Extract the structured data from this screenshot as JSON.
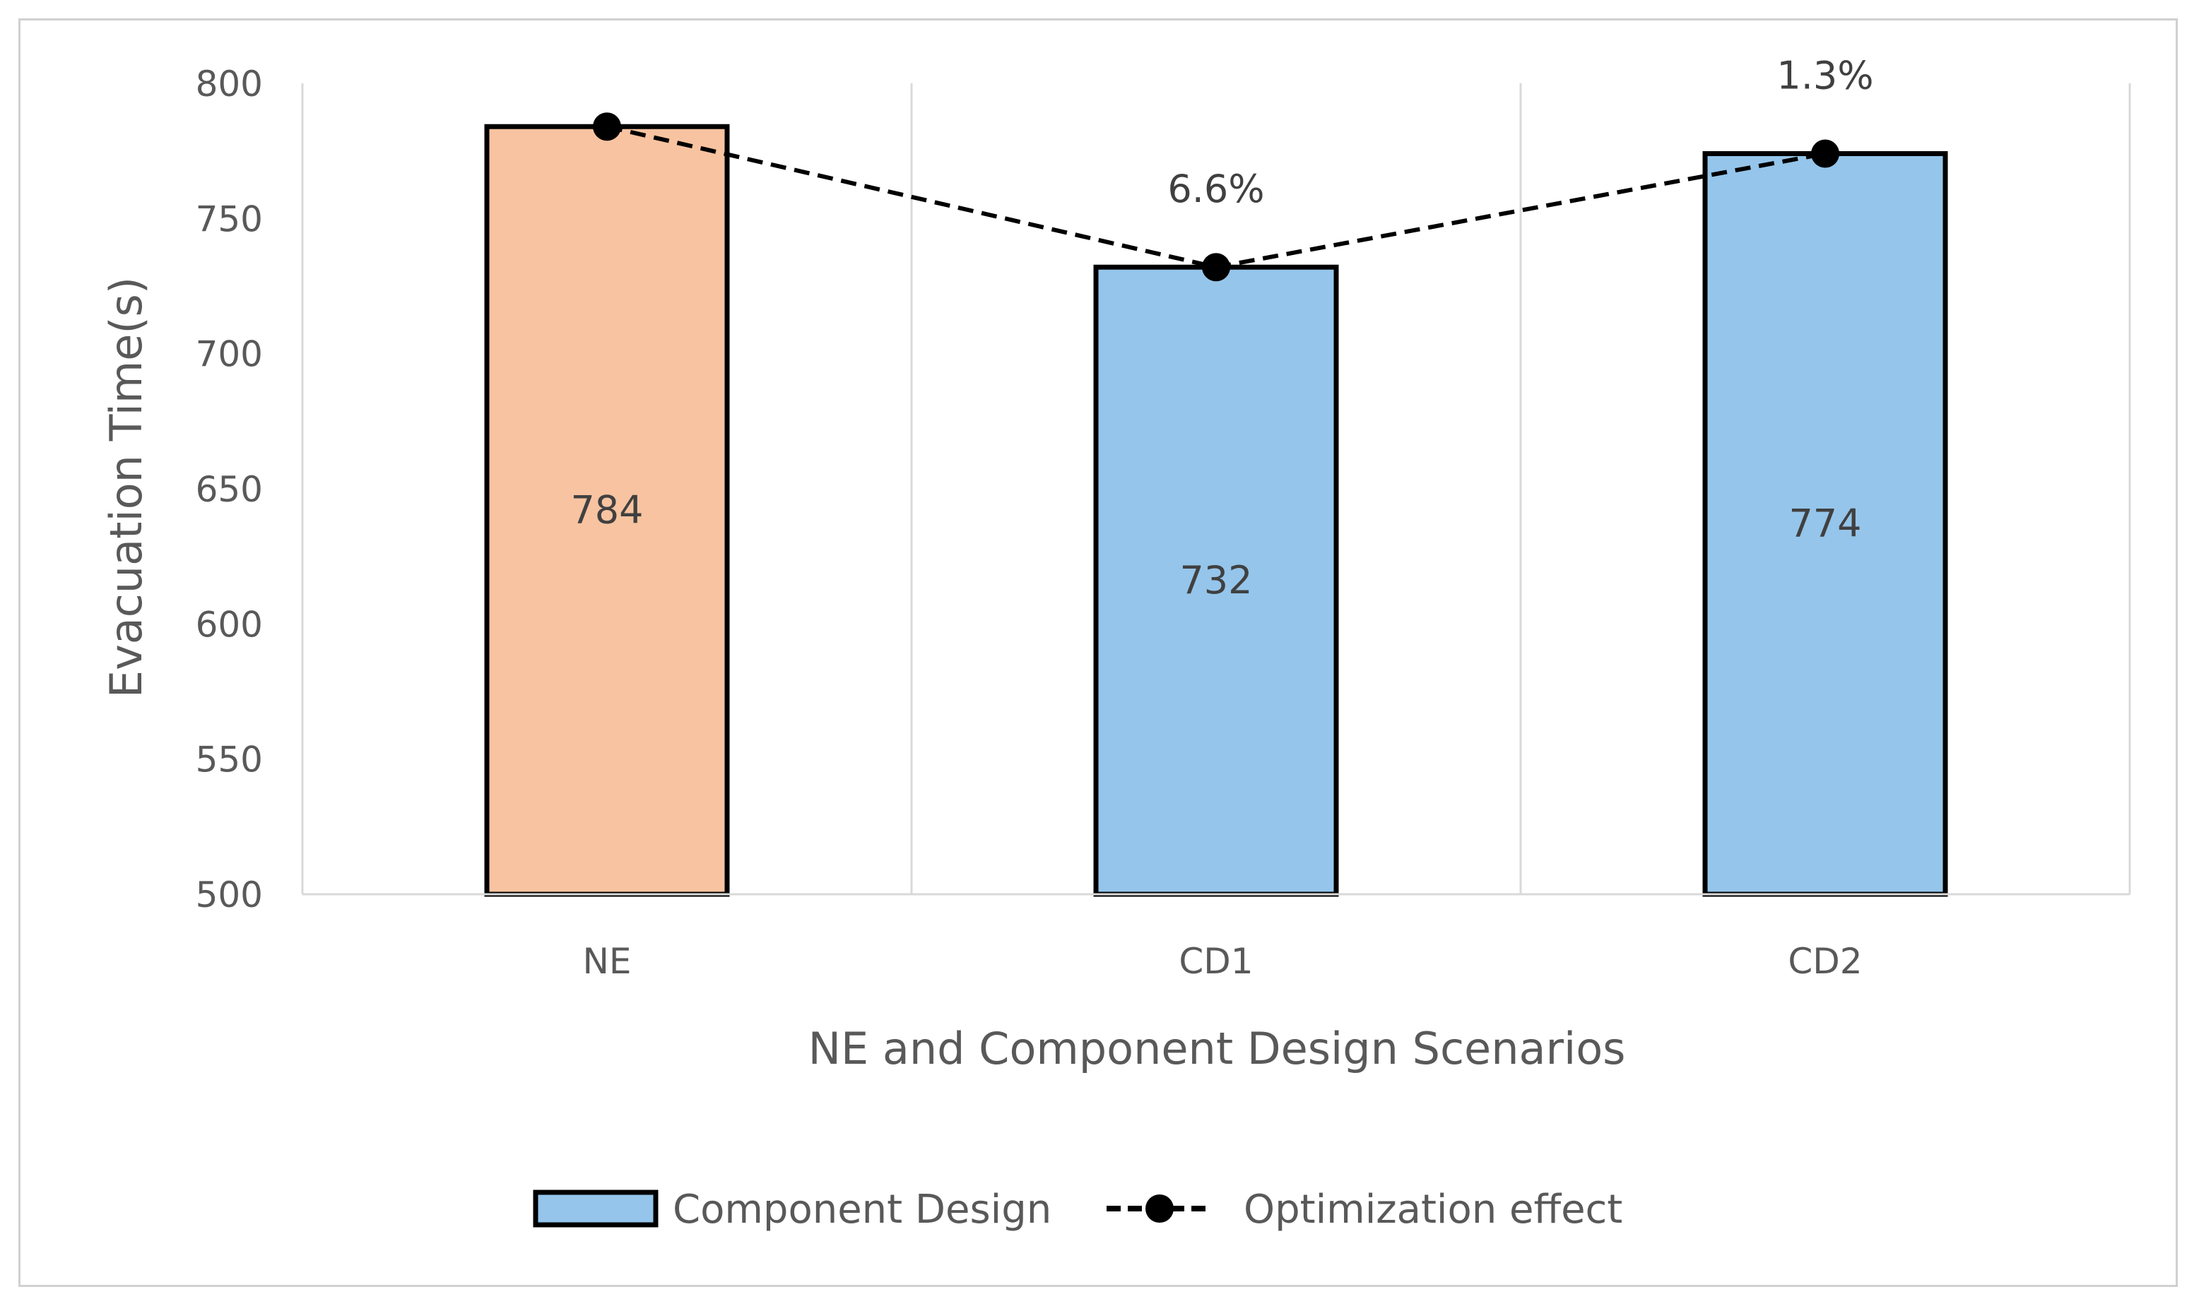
{
  "chart_data": {
    "type": "bar",
    "title": "",
    "xlabel": "NE and Component Design Scenarios",
    "ylabel": "Evacuation Time(s)",
    "ylim": [
      500,
      800
    ],
    "yticks": [
      500,
      550,
      600,
      650,
      700,
      750,
      800
    ],
    "categories": [
      "NE",
      "CD1",
      "CD2"
    ],
    "series": [
      {
        "name": "Component Design",
        "type": "bar",
        "values": [
          784,
          732,
          774
        ],
        "data_labels": [
          "784",
          "732",
          "774"
        ],
        "colors": [
          "#f8c3a0",
          "#95c5ea",
          "#95c5ea"
        ]
      },
      {
        "name": "Optimization effect",
        "type": "line",
        "style": "dashed",
        "values": [
          784,
          732,
          774
        ],
        "data_labels": [
          "",
          "6.6%",
          "1.3%"
        ],
        "color": "#000000"
      }
    ],
    "grid": "vertical-category-separators",
    "legend": "bottom-center"
  }
}
